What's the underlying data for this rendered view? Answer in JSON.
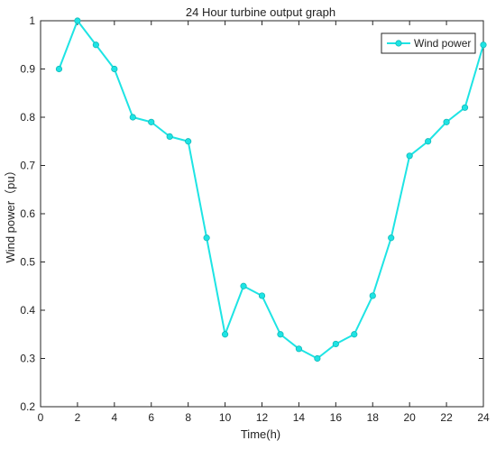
{
  "chart_data": {
    "type": "line",
    "title": "24 Hour turbine output graph",
    "xlabel": "Time(h)",
    "ylabel": "Wind power（pu）",
    "xlim": [
      0,
      24
    ],
    "ylim": [
      0.2,
      1.0
    ],
    "xticks": [
      0,
      2,
      4,
      6,
      8,
      10,
      12,
      14,
      16,
      18,
      20,
      22,
      24
    ],
    "yticks": [
      0.2,
      0.3,
      0.4,
      0.5,
      0.6,
      0.7,
      0.8,
      0.9,
      1.0
    ],
    "xtick_labels": [
      "0",
      "2",
      "4",
      "6",
      "8",
      "10",
      "12",
      "14",
      "16",
      "18",
      "20",
      "22",
      "24"
    ],
    "ytick_labels": [
      "0.2",
      "0.3",
      "0.4",
      "0.5",
      "0.6",
      "0.7",
      "0.8",
      "0.9",
      "1"
    ],
    "grid": false,
    "legend_position": "top-right",
    "series": [
      {
        "name": "Wind power",
        "color": "#1EE4E4",
        "marker": "circle",
        "x": [
          1,
          2,
          3,
          4,
          5,
          6,
          7,
          8,
          9,
          10,
          11,
          12,
          13,
          14,
          15,
          16,
          17,
          18,
          19,
          20,
          21,
          22,
          23,
          24
        ],
        "values": [
          0.9,
          1.0,
          0.95,
          0.9,
          0.8,
          0.79,
          0.76,
          0.75,
          0.55,
          0.35,
          0.45,
          0.43,
          0.35,
          0.32,
          0.3,
          0.33,
          0.35,
          0.43,
          0.55,
          0.72,
          0.75,
          0.79,
          0.82,
          0.95
        ]
      }
    ]
  }
}
